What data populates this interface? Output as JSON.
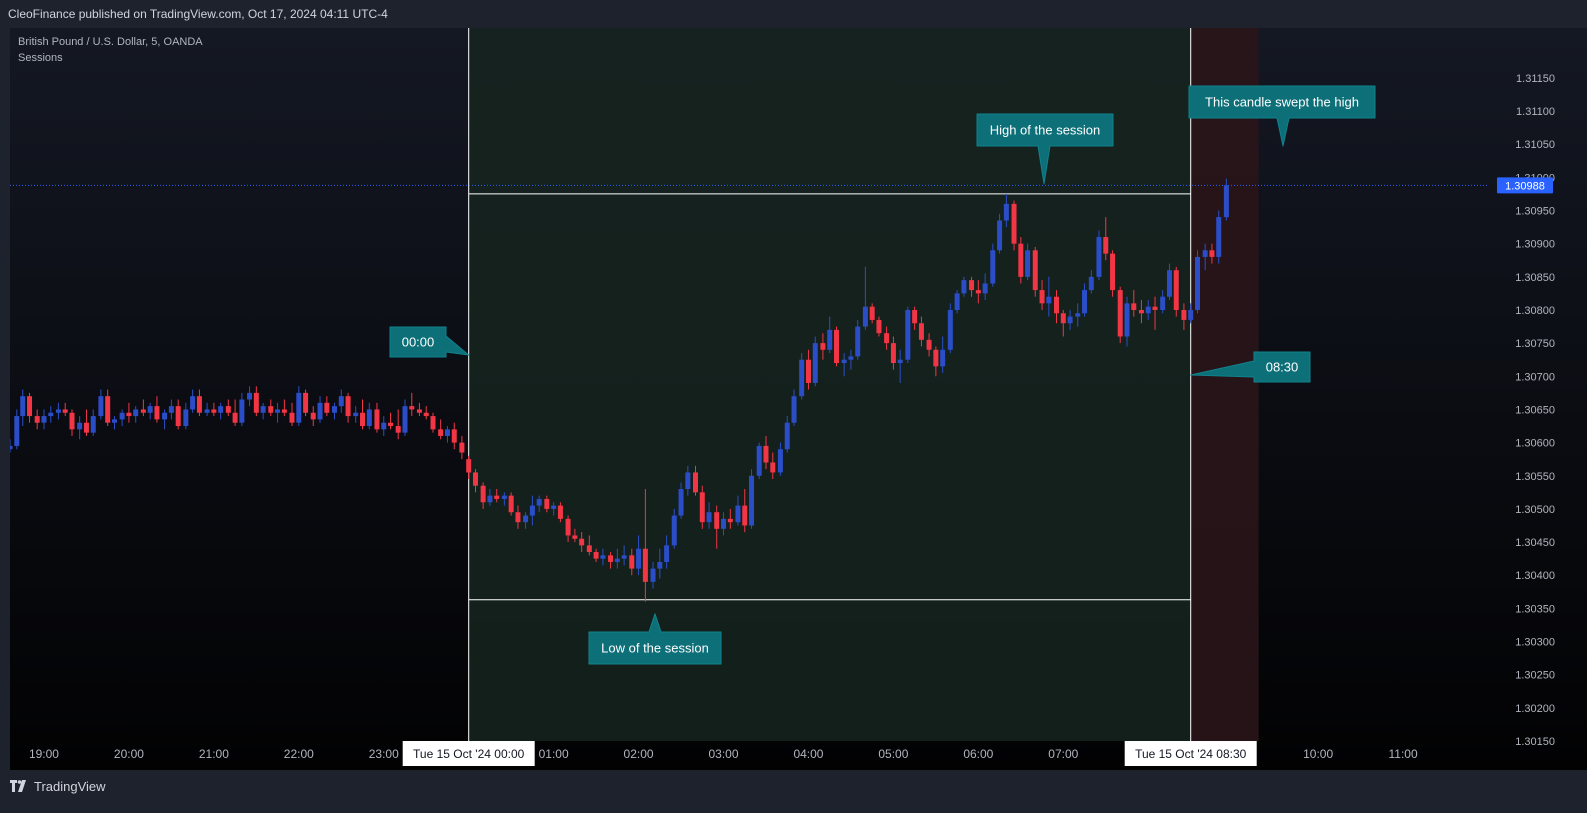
{
  "header": {
    "published": "CleoFinance published on TradingView.com, Oct 17, 2024 04:11 UTC-4"
  },
  "legend": {
    "symbol": "British Pound / U.S. Dollar, 5, OANDA",
    "indicator": "Sessions"
  },
  "footer": {
    "brand": "TradingView",
    "logo_icon": "tradingview-logo-icon"
  },
  "colors": {
    "up": "#2b4ec8",
    "down": "#f23645",
    "session_bg": "#16241e",
    "post_bg": "#2a1519",
    "bubble": "#0d6f78",
    "price_tag": "#2962ff"
  },
  "chart_data": {
    "type": "candlestick",
    "ylim": [
      1.3015,
      1.3118
    ],
    "y_ticks": [
      "1.31150",
      "1.31100",
      "1.31050",
      "1.31000",
      "1.30950",
      "1.30900",
      "1.30850",
      "1.30800",
      "1.30750",
      "1.30700",
      "1.30650",
      "1.30600",
      "1.30550",
      "1.30500",
      "1.30450",
      "1.30400",
      "1.30350",
      "1.30300",
      "1.30250",
      "1.30200",
      "1.30150"
    ],
    "x_ticks": [
      {
        "label": "19:00",
        "hour": 19
      },
      {
        "label": "20:00",
        "hour": 20
      },
      {
        "label": "21:00",
        "hour": 21
      },
      {
        "label": "22:00",
        "hour": 22
      },
      {
        "label": "23:00",
        "hour": 23
      },
      {
        "label": "01:00",
        "hour": 25
      },
      {
        "label": "02:00",
        "hour": 26
      },
      {
        "label": "03:00",
        "hour": 27
      },
      {
        "label": "04:00",
        "hour": 28
      },
      {
        "label": "05:00",
        "hour": 29
      },
      {
        "label": "06:00",
        "hour": 30
      },
      {
        "label": "07:00",
        "hour": 31
      },
      {
        "label": "10:00",
        "hour": 34
      },
      {
        "label": "11:00",
        "hour": 35
      }
    ],
    "x_range_hours": [
      18.6,
      36.0
    ],
    "last_price": "1.30988",
    "session": {
      "start_label": "Tue 15 Oct '24   00:00",
      "start_hour": 24,
      "end_label": "Tue 15 Oct '24   08:30",
      "end_hour": 32.5,
      "post_end_hour": 33.3,
      "high": 1.30975,
      "low": 1.30363
    },
    "annotations": [
      {
        "text": "00:00"
      },
      {
        "text": "High of the session"
      },
      {
        "text": "Low of the session"
      },
      {
        "text": "08:30"
      },
      {
        "text": "This candle swept the high"
      }
    ],
    "candles": [
      [
        18.6,
        1.3059,
        1.30605,
        1.30585,
        1.30595
      ],
      [
        18.68,
        1.30595,
        1.3065,
        1.3059,
        1.3064
      ],
      [
        18.75,
        1.3064,
        1.3068,
        1.30625,
        1.3067
      ],
      [
        18.83,
        1.3067,
        1.30675,
        1.3063,
        1.3064
      ],
      [
        18.92,
        1.3064,
        1.3065,
        1.3062,
        1.3063
      ],
      [
        19.0,
        1.3063,
        1.3065,
        1.3062,
        1.3064
      ],
      [
        19.08,
        1.3064,
        1.30655,
        1.3063,
        1.30645
      ],
      [
        19.17,
        1.30645,
        1.3066,
        1.30635,
        1.3065
      ],
      [
        19.25,
        1.3065,
        1.3066,
        1.3064,
        1.30645
      ],
      [
        19.33,
        1.30645,
        1.3065,
        1.3061,
        1.3062
      ],
      [
        19.42,
        1.3062,
        1.3064,
        1.30605,
        1.3063
      ],
      [
        19.5,
        1.3063,
        1.3065,
        1.3061,
        1.30615
      ],
      [
        19.58,
        1.30615,
        1.3065,
        1.3061,
        1.3064
      ],
      [
        19.67,
        1.3064,
        1.3068,
        1.30635,
        1.3067
      ],
      [
        19.75,
        1.3067,
        1.3068,
        1.30625,
        1.3063
      ],
      [
        19.83,
        1.3063,
        1.3064,
        1.3062,
        1.30635
      ],
      [
        19.92,
        1.30635,
        1.3065,
        1.30625,
        1.30645
      ],
      [
        20.0,
        1.30645,
        1.3066,
        1.3063,
        1.3064
      ],
      [
        20.08,
        1.3064,
        1.30655,
        1.3063,
        1.3065
      ],
      [
        20.17,
        1.3065,
        1.30665,
        1.3064,
        1.30645
      ],
      [
        20.25,
        1.30645,
        1.3066,
        1.30635,
        1.30655
      ],
      [
        20.33,
        1.30655,
        1.3067,
        1.3063,
        1.30635
      ],
      [
        20.42,
        1.30635,
        1.3065,
        1.3062,
        1.30645
      ],
      [
        20.5,
        1.30645,
        1.30665,
        1.30635,
        1.30655
      ],
      [
        20.58,
        1.30655,
        1.30665,
        1.3062,
        1.30625
      ],
      [
        20.67,
        1.30625,
        1.3066,
        1.3062,
        1.3065
      ],
      [
        20.75,
        1.3065,
        1.3068,
        1.30645,
        1.3067
      ],
      [
        20.83,
        1.3067,
        1.3068,
        1.3064,
        1.30645
      ],
      [
        20.92,
        1.30645,
        1.3066,
        1.3064,
        1.3065
      ],
      [
        21.0,
        1.3065,
        1.3066,
        1.3064,
        1.30645
      ],
      [
        21.08,
        1.30645,
        1.3066,
        1.30635,
        1.30655
      ],
      [
        21.17,
        1.30655,
        1.30665,
        1.3064,
        1.30645
      ],
      [
        21.25,
        1.30645,
        1.30665,
        1.30625,
        1.3063
      ],
      [
        21.33,
        1.3063,
        1.30675,
        1.30625,
        1.30665
      ],
      [
        21.42,
        1.30665,
        1.30685,
        1.30655,
        1.30675
      ],
      [
        21.5,
        1.30675,
        1.30685,
        1.3064,
        1.30645
      ],
      [
        21.58,
        1.30645,
        1.3066,
        1.30635,
        1.30655
      ],
      [
        21.67,
        1.30655,
        1.30665,
        1.3064,
        1.30645
      ],
      [
        21.75,
        1.30645,
        1.3066,
        1.3063,
        1.3065
      ],
      [
        21.83,
        1.3065,
        1.30665,
        1.3064,
        1.30645
      ],
      [
        21.92,
        1.30645,
        1.3066,
        1.30625,
        1.3063
      ],
      [
        22.0,
        1.3063,
        1.30685,
        1.30625,
        1.30675
      ],
      [
        22.08,
        1.30675,
        1.3068,
        1.3064,
        1.30645
      ],
      [
        22.17,
        1.30645,
        1.30655,
        1.30625,
        1.30635
      ],
      [
        22.25,
        1.30635,
        1.3067,
        1.3063,
        1.3066
      ],
      [
        22.33,
        1.3066,
        1.3067,
        1.3064,
        1.30645
      ],
      [
        22.42,
        1.30645,
        1.3066,
        1.30635,
        1.30655
      ],
      [
        22.5,
        1.30655,
        1.3068,
        1.30645,
        1.3067
      ],
      [
        22.58,
        1.3067,
        1.30675,
        1.3063,
        1.3064
      ],
      [
        22.67,
        1.3064,
        1.30655,
        1.3063,
        1.30645
      ],
      [
        22.75,
        1.30645,
        1.30665,
        1.3062,
        1.30625
      ],
      [
        22.83,
        1.30625,
        1.3066,
        1.3062,
        1.3065
      ],
      [
        22.92,
        1.3065,
        1.3066,
        1.30615,
        1.3062
      ],
      [
        23.0,
        1.3062,
        1.3064,
        1.3061,
        1.3063
      ],
      [
        23.08,
        1.3063,
        1.30645,
        1.3062,
        1.30625
      ],
      [
        23.17,
        1.30625,
        1.3065,
        1.30605,
        1.30615
      ],
      [
        23.25,
        1.30615,
        1.30665,
        1.3061,
        1.30655
      ],
      [
        23.33,
        1.30655,
        1.30675,
        1.3064,
        1.3065
      ],
      [
        23.42,
        1.3065,
        1.3066,
        1.3064,
        1.30645
      ],
      [
        23.5,
        1.30645,
        1.30655,
        1.30635,
        1.3064
      ],
      [
        23.58,
        1.3064,
        1.30645,
        1.30615,
        1.3062
      ],
      [
        23.67,
        1.3062,
        1.30635,
        1.30605,
        1.3061
      ],
      [
        23.75,
        1.3061,
        1.30625,
        1.306,
        1.3062
      ],
      [
        23.83,
        1.3062,
        1.3063,
        1.3059,
        1.306
      ],
      [
        23.92,
        1.306,
        1.3061,
        1.30575,
        1.30585
      ],
      [
        24.0,
        1.30575,
        1.3058,
        1.30545,
        1.30555
      ],
      [
        24.08,
        1.30555,
        1.3056,
        1.30525,
        1.30535
      ],
      [
        24.17,
        1.30535,
        1.3054,
        1.305,
        1.3051
      ],
      [
        24.25,
        1.3051,
        1.3053,
        1.30505,
        1.3052
      ],
      [
        24.33,
        1.3052,
        1.3053,
        1.3051,
        1.30515
      ],
      [
        24.42,
        1.30515,
        1.30525,
        1.30505,
        1.3052
      ],
      [
        24.5,
        1.3052,
        1.30525,
        1.3049,
        1.30495
      ],
      [
        24.58,
        1.30495,
        1.30505,
        1.3047,
        1.3048
      ],
      [
        24.67,
        1.3048,
        1.30495,
        1.3047,
        1.3049
      ],
      [
        24.75,
        1.3049,
        1.3052,
        1.30475,
        1.30505
      ],
      [
        24.83,
        1.30505,
        1.3052,
        1.30495,
        1.30515
      ],
      [
        24.92,
        1.30515,
        1.3052,
        1.30495,
        1.305
      ],
      [
        25.0,
        1.305,
        1.3051,
        1.3049,
        1.30505
      ],
      [
        25.08,
        1.30505,
        1.3051,
        1.3048,
        1.30485
      ],
      [
        25.17,
        1.30485,
        1.3049,
        1.3045,
        1.3046
      ],
      [
        25.25,
        1.3046,
        1.3047,
        1.3045,
        1.30455
      ],
      [
        25.33,
        1.30455,
        1.30465,
        1.30435,
        1.30445
      ],
      [
        25.42,
        1.30445,
        1.3046,
        1.3043,
        1.30435
      ],
      [
        25.5,
        1.30435,
        1.3044,
        1.3042,
        1.30425
      ],
      [
        25.58,
        1.30425,
        1.3044,
        1.30415,
        1.3043
      ],
      [
        25.67,
        1.3043,
        1.30435,
        1.3041,
        1.3042
      ],
      [
        25.75,
        1.3042,
        1.3044,
        1.3041,
        1.30425
      ],
      [
        25.83,
        1.30425,
        1.30445,
        1.30415,
        1.3043
      ],
      [
        25.92,
        1.3043,
        1.3044,
        1.304,
        1.3041
      ],
      [
        26.0,
        1.3041,
        1.3046,
        1.304,
        1.3044
      ],
      [
        26.08,
        1.3044,
        1.3053,
        1.3036,
        1.3039
      ],
      [
        26.17,
        1.3039,
        1.3042,
        1.3038,
        1.3041
      ],
      [
        26.25,
        1.3041,
        1.3044,
        1.30395,
        1.3042
      ],
      [
        26.33,
        1.3042,
        1.3046,
        1.3041,
        1.30445
      ],
      [
        26.42,
        1.30445,
        1.305,
        1.3044,
        1.3049
      ],
      [
        26.5,
        1.3049,
        1.3054,
        1.30485,
        1.3053
      ],
      [
        26.58,
        1.3053,
        1.30565,
        1.3052,
        1.30555
      ],
      [
        26.67,
        1.30555,
        1.30565,
        1.3052,
        1.30525
      ],
      [
        26.75,
        1.30525,
        1.30535,
        1.3047,
        1.3048
      ],
      [
        26.83,
        1.3048,
        1.3051,
        1.3047,
        1.30495
      ],
      [
        26.92,
        1.30495,
        1.30505,
        1.3044,
        1.3047
      ],
      [
        27.0,
        1.3047,
        1.30495,
        1.3046,
        1.30485
      ],
      [
        27.08,
        1.30485,
        1.305,
        1.3047,
        1.3048
      ],
      [
        27.17,
        1.3048,
        1.3052,
        1.30475,
        1.30505
      ],
      [
        27.25,
        1.30505,
        1.3053,
        1.30465,
        1.30475
      ],
      [
        27.33,
        1.30475,
        1.3056,
        1.3047,
        1.3055
      ],
      [
        27.42,
        1.3055,
        1.306,
        1.30545,
        1.30595
      ],
      [
        27.5,
        1.30595,
        1.3061,
        1.3056,
        1.3057
      ],
      [
        27.58,
        1.3057,
        1.30585,
        1.30545,
        1.30555
      ],
      [
        27.67,
        1.30555,
        1.306,
        1.3055,
        1.3059
      ],
      [
        27.75,
        1.3059,
        1.3064,
        1.30585,
        1.3063
      ],
      [
        27.83,
        1.3063,
        1.3068,
        1.30625,
        1.3067
      ],
      [
        27.92,
        1.3067,
        1.30735,
        1.30665,
        1.30725
      ],
      [
        28.0,
        1.30725,
        1.3074,
        1.3068,
        1.3069
      ],
      [
        28.08,
        1.3069,
        1.3076,
        1.30685,
        1.3075
      ],
      [
        28.17,
        1.3075,
        1.30765,
        1.30725,
        1.3074
      ],
      [
        28.25,
        1.3074,
        1.3079,
        1.30735,
        1.3077
      ],
      [
        28.33,
        1.3077,
        1.30775,
        1.30715,
        1.3072
      ],
      [
        28.42,
        1.3072,
        1.30735,
        1.307,
        1.30725
      ],
      [
        28.5,
        1.30725,
        1.3074,
        1.3071,
        1.3073
      ],
      [
        28.58,
        1.3073,
        1.30785,
        1.30725,
        1.30775
      ],
      [
        28.67,
        1.30775,
        1.30865,
        1.3077,
        1.30805
      ],
      [
        28.75,
        1.30805,
        1.3081,
        1.3078,
        1.30785
      ],
      [
        28.83,
        1.30785,
        1.3079,
        1.3076,
        1.30765
      ],
      [
        28.92,
        1.30765,
        1.30775,
        1.3074,
        1.3075
      ],
      [
        29.0,
        1.3075,
        1.3076,
        1.3071,
        1.3072
      ],
      [
        29.08,
        1.3072,
        1.3074,
        1.3069,
        1.30725
      ],
      [
        29.17,
        1.30725,
        1.30805,
        1.3072,
        1.308
      ],
      [
        29.25,
        1.308,
        1.30805,
        1.3077,
        1.3078
      ],
      [
        29.33,
        1.3078,
        1.3079,
        1.30745,
        1.30755
      ],
      [
        29.42,
        1.30755,
        1.30765,
        1.3073,
        1.3074
      ],
      [
        29.5,
        1.3074,
        1.30745,
        1.307,
        1.30715
      ],
      [
        29.58,
        1.30715,
        1.3076,
        1.30705,
        1.3074
      ],
      [
        29.67,
        1.3074,
        1.3081,
        1.30735,
        1.308
      ],
      [
        29.75,
        1.308,
        1.3083,
        1.30795,
        1.30825
      ],
      [
        29.83,
        1.30825,
        1.3085,
        1.3082,
        1.30845
      ],
      [
        29.92,
        1.30845,
        1.3085,
        1.3082,
        1.3083
      ],
      [
        30.0,
        1.3083,
        1.30845,
        1.3081,
        1.30825
      ],
      [
        30.08,
        1.30825,
        1.30855,
        1.30815,
        1.3084
      ],
      [
        30.17,
        1.3084,
        1.309,
        1.30835,
        1.3089
      ],
      [
        30.25,
        1.3089,
        1.30945,
        1.30885,
        1.30935
      ],
      [
        30.33,
        1.30935,
        1.30975,
        1.30925,
        1.3096
      ],
      [
        30.42,
        1.3096,
        1.30965,
        1.3089,
        1.309
      ],
      [
        30.5,
        1.309,
        1.3091,
        1.3084,
        1.3085
      ],
      [
        30.58,
        1.3085,
        1.309,
        1.30845,
        1.3089
      ],
      [
        30.67,
        1.3089,
        1.30895,
        1.3082,
        1.3083
      ],
      [
        30.75,
        1.3083,
        1.30845,
        1.308,
        1.3081
      ],
      [
        30.83,
        1.3081,
        1.3085,
        1.3079,
        1.3082
      ],
      [
        30.92,
        1.3082,
        1.3083,
        1.3078,
        1.30795
      ],
      [
        31.0,
        1.30795,
        1.308,
        1.3076,
        1.3078
      ],
      [
        31.08,
        1.3078,
        1.308,
        1.3077,
        1.3079
      ],
      [
        31.17,
        1.3079,
        1.3081,
        1.30775,
        1.30795
      ],
      [
        31.25,
        1.30795,
        1.3084,
        1.3079,
        1.3083
      ],
      [
        31.33,
        1.3083,
        1.3086,
        1.30825,
        1.3085
      ],
      [
        31.42,
        1.3085,
        1.3092,
        1.30845,
        1.3091
      ],
      [
        31.5,
        1.3091,
        1.3094,
        1.30875,
        1.30885
      ],
      [
        31.58,
        1.30885,
        1.3089,
        1.3082,
        1.3083
      ],
      [
        31.67,
        1.3083,
        1.30835,
        1.3075,
        1.3076
      ],
      [
        31.75,
        1.3076,
        1.3082,
        1.30745,
        1.3081
      ],
      [
        31.83,
        1.3081,
        1.3083,
        1.3079,
        1.308
      ],
      [
        31.92,
        1.308,
        1.30815,
        1.3078,
        1.30795
      ],
      [
        32.0,
        1.30795,
        1.30815,
        1.30785,
        1.30805
      ],
      [
        32.08,
        1.30805,
        1.3082,
        1.3077,
        1.308
      ],
      [
        32.17,
        1.308,
        1.3083,
        1.30795,
        1.3082
      ],
      [
        32.25,
        1.3082,
        1.3087,
        1.30815,
        1.3086
      ],
      [
        32.33,
        1.3086,
        1.30865,
        1.3079,
        1.308
      ],
      [
        32.42,
        1.308,
        1.3081,
        1.3077,
        1.30785
      ],
      [
        32.5,
        1.30785,
        1.3081,
        1.3078,
        1.308
      ],
      [
        32.58,
        1.308,
        1.3089,
        1.30795,
        1.3088
      ],
      [
        32.67,
        1.3088,
        1.309,
        1.3086,
        1.3089
      ],
      [
        32.75,
        1.3089,
        1.309,
        1.3087,
        1.3088
      ],
      [
        32.83,
        1.3088,
        1.3095,
        1.3087,
        1.3094
      ],
      [
        32.92,
        1.3094,
        1.30998,
        1.30935,
        1.30988
      ]
    ]
  }
}
